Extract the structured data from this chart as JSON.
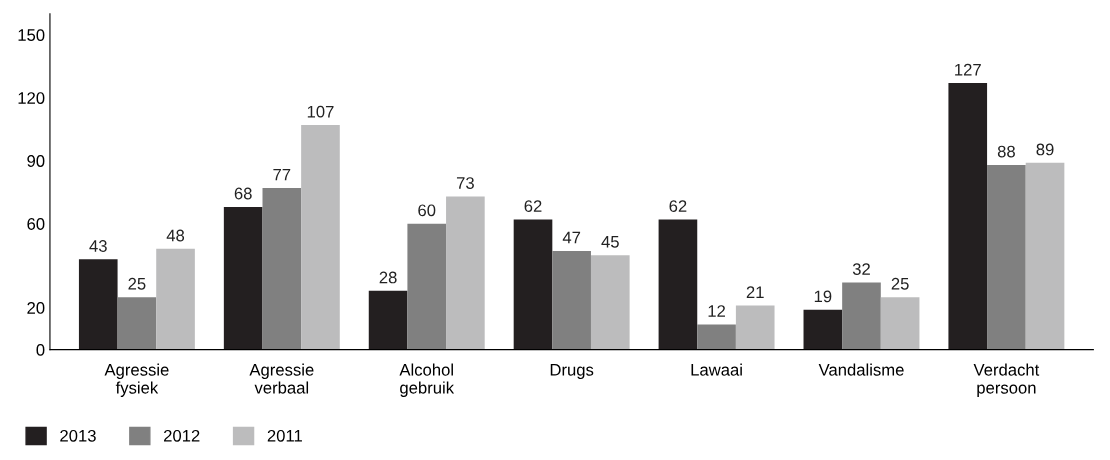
{
  "chart_data": {
    "type": "bar",
    "categories": [
      "Agressie\nfysiek",
      "Agressie\nverbaal",
      "Alcohol\ngebruik",
      "Drugs",
      "Lawaai",
      "Vandalisme",
      "Verdacht\npersoon"
    ],
    "series": [
      {
        "name": "2013",
        "color": "#231f20",
        "values": [
          43,
          68,
          28,
          62,
          62,
          19,
          127
        ]
      },
      {
        "name": "2012",
        "color": "#808080",
        "values": [
          25,
          77,
          60,
          47,
          12,
          32,
          88
        ]
      },
      {
        "name": "2011",
        "color": "#bcbcbd",
        "values": [
          48,
          107,
          73,
          45,
          21,
          25,
          89
        ]
      }
    ],
    "ylim": [
      0,
      160
    ],
    "yticks": [
      0,
      20,
      60,
      90,
      120,
      150
    ],
    "data_labels": true,
    "grid": false,
    "legend": "bottom left"
  }
}
